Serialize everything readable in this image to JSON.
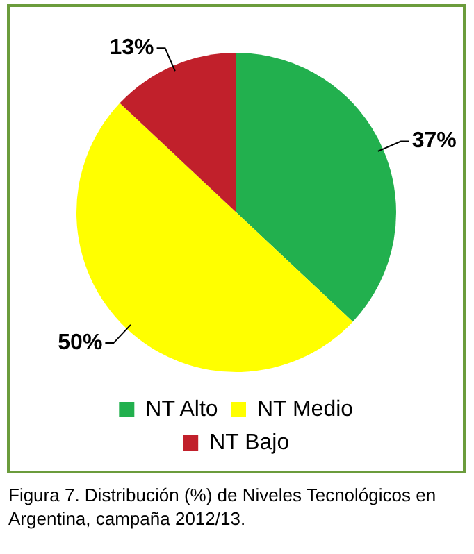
{
  "chart_data": {
    "type": "pie",
    "categories": [
      "NT Alto",
      "NT Medio",
      "NT Bajo"
    ],
    "values": [
      37,
      50,
      13
    ],
    "colors": [
      "#22b04e",
      "#ffff00",
      "#c1202b"
    ],
    "value_labels": [
      "37%",
      "50%",
      "13%"
    ],
    "legend": "bottom",
    "annotations": [
      "Figura 7. Distribución (%) de Niveles Tecnológicos en Argentina, campaña 2012/13."
    ]
  }
}
